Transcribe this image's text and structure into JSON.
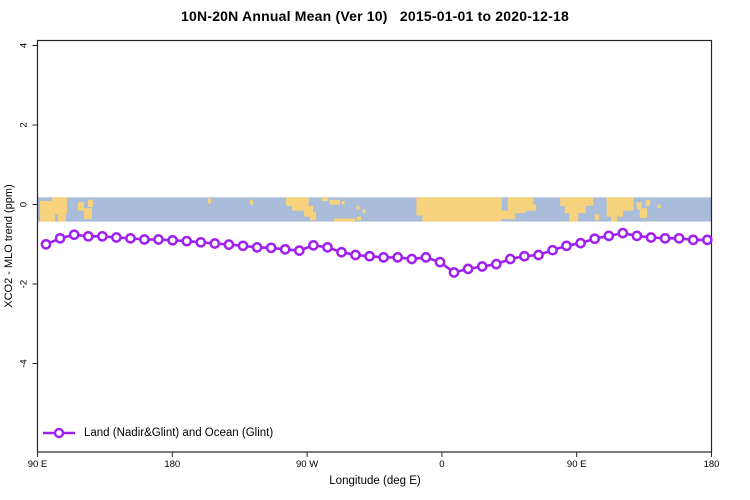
{
  "title": "10N-20N Annual Mean (Ver 10)   2015-01-01 to 2020-12-18",
  "axes": {
    "x_title": "Longitude (deg E)",
    "y_title": "XCO2 - MLO trend (ppm)"
  },
  "legend": {
    "label": "Land (Nadir&Glint) and Ocean (Glint)",
    "marker": "open-circle-on-line"
  },
  "colors": {
    "line": "#A020F0",
    "marker_fill": "#ffffff",
    "ocean": "#A9BCD9",
    "land": "#F7D27D",
    "frame": "#262626",
    "text": "#000000",
    "background": "#ffffff"
  },
  "chart_data": {
    "type": "line",
    "title": "10N-20N Annual Mean (Ver 10)   2015-01-01 to 2020-12-18",
    "xlabel": "Longitude (deg E)",
    "ylabel": "XCO2 - MLO trend (ppm)",
    "grid": false,
    "legend_position": "bottom-left-inside",
    "x_axis": {
      "note": "longitude axis wraps eastward starting at 90E; axis units run 90..540",
      "range": [
        90,
        540
      ],
      "ticks": [
        90,
        180,
        270,
        360,
        450,
        540
      ],
      "tick_labels": [
        "90 E",
        "180",
        "90 W",
        "0",
        "90 E",
        "180"
      ]
    },
    "y_axis": {
      "range": [
        -6.35,
        4.1
      ],
      "ticks": [
        4,
        2,
        0,
        -2,
        -4
      ],
      "tick_labels": [
        "4",
        "2",
        "0",
        "-2",
        "-4"
      ],
      "tick_label_rotation": -90
    },
    "map_band": {
      "description": "world-map strip of the 10N-20N latitude zone drawn across the 0 ppm level",
      "lat_range": "10N-20N",
      "y_top_value": 0.18,
      "y_bottom_value": -0.43,
      "land_patches_lon_frac": [
        [
          91.7,
          101.7,
          0.15,
          1.0
        ],
        [
          99.7,
          109.7,
          0.0,
          0.7
        ],
        [
          103.7,
          109.0,
          0.7,
          1.0
        ],
        [
          117,
          121,
          0.2,
          0.55
        ],
        [
          121,
          126.4,
          0.45,
          0.9
        ],
        [
          123.7,
          127,
          0.1,
          0.4
        ],
        [
          203.9,
          205.9,
          0.05,
          0.25
        ],
        [
          232,
          234,
          0.1,
          0.3
        ],
        [
          256,
          262,
          0.0,
          0.35
        ],
        [
          260,
          271,
          0.0,
          0.55
        ],
        [
          268,
          274,
          0.35,
          0.8
        ],
        [
          272,
          276,
          0.6,
          0.95
        ],
        [
          280,
          284,
          0.0,
          0.15
        ],
        [
          285,
          292,
          0.1,
          0.3
        ],
        [
          293,
          295,
          0.15,
          0.3
        ],
        [
          288,
          302,
          0.87,
          1.0
        ],
        [
          303,
          306,
          0.8,
          0.95
        ],
        [
          303,
          305,
          0.35,
          0.5
        ],
        [
          307,
          309,
          0.5,
          0.65
        ],
        [
          343,
          360,
          0.0,
          0.75
        ],
        [
          347,
          360,
          0.75,
          1.0
        ],
        [
          360,
          400,
          0.0,
          1.0
        ],
        [
          400,
          409,
          0.55,
          0.9
        ],
        [
          404,
          416,
          0.0,
          0.65
        ],
        [
          412,
          421,
          0.0,
          0.35
        ],
        [
          415,
          423,
          0.3,
          0.55
        ],
        [
          439,
          461,
          0.0,
          0.35
        ],
        [
          442,
          456,
          0.35,
          0.65
        ],
        [
          445,
          451,
          0.65,
          1.0
        ],
        [
          462,
          465,
          0.7,
          0.95
        ],
        [
          470,
          481,
          0.0,
          0.8
        ],
        [
          479,
          488,
          0.0,
          0.55
        ],
        [
          473,
          477,
          0.8,
          1.0
        ],
        [
          490,
          493.5,
          0.2,
          0.5
        ],
        [
          492,
          497,
          0.45,
          0.85
        ],
        [
          496,
          499,
          0.1,
          0.35
        ],
        [
          504,
          506,
          0.3,
          0.45
        ]
      ]
    },
    "series": [
      {
        "name": "Land (Nadir&Glint) and Ocean (Glint)",
        "color": "#A020F0",
        "marker": "open-circle",
        "x": [
          95.7,
          105.1,
          114.5,
          123.9,
          133.3,
          142.7,
          152.1,
          161.4,
          170.8,
          180.2,
          189.6,
          199.0,
          208.4,
          217.8,
          227.2,
          236.6,
          246.0,
          255.4,
          264.8,
          274.2,
          283.6,
          293.0,
          302.3,
          311.7,
          321.1,
          330.5,
          339.9,
          349.3,
          358.7,
          368.1,
          377.5,
          386.9,
          396.3,
          405.7,
          415.1,
          424.5,
          433.9,
          443.2,
          452.6,
          462.0,
          471.4,
          480.8,
          490.2,
          499.6,
          509.0,
          518.4,
          527.8,
          537.2
        ],
        "y": [
          -1.0,
          -0.85,
          -0.76,
          -0.8,
          -0.8,
          -0.83,
          -0.85,
          -0.88,
          -0.88,
          -0.9,
          -0.92,
          -0.95,
          -0.98,
          -1.01,
          -1.04,
          -1.08,
          -1.09,
          -1.13,
          -1.16,
          -1.03,
          -1.08,
          -1.2,
          -1.27,
          -1.3,
          -1.33,
          -1.33,
          -1.37,
          -1.33,
          -1.45,
          -1.71,
          -1.62,
          -1.56,
          -1.5,
          -1.37,
          -1.3,
          -1.27,
          -1.15,
          -1.04,
          -0.97,
          -0.86,
          -0.79,
          -0.72,
          -0.79,
          -0.83,
          -0.85,
          -0.85,
          -0.89,
          -0.89
        ]
      }
    ]
  }
}
